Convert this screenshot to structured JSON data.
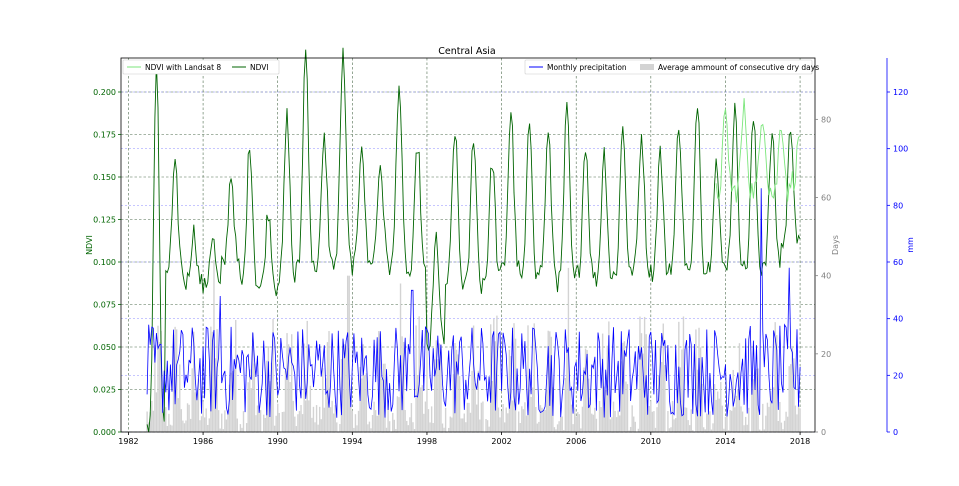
{
  "chart_data": {
    "type": "line",
    "title": "Central Asia",
    "x_axis": {
      "ticks": [
        "1982",
        "1986",
        "1990",
        "1994",
        "1998",
        "2002",
        "2006",
        "2010",
        "2014",
        "2018"
      ],
      "range": [
        1981.6,
        2018.8
      ]
    },
    "y_left": {
      "label": "NDVI",
      "ticks": [
        "0.000",
        "0.025",
        "0.050",
        "0.075",
        "0.100",
        "0.125",
        "0.150",
        "0.175",
        "0.200"
      ],
      "range": [
        0,
        0.22
      ],
      "color": "#006400"
    },
    "y_days": {
      "label": "Days",
      "ticks": [
        "0",
        "20",
        "40",
        "60",
        "80"
      ],
      "range": [
        0,
        95.7
      ],
      "color": "#808080"
    },
    "y_mm": {
      "label": "mm",
      "ticks": [
        "0",
        "20",
        "40",
        "60",
        "80",
        "100",
        "120"
      ],
      "range": [
        0,
        132
      ],
      "color": "#0000ff"
    },
    "grid": true,
    "legend_left": {
      "placement": "upper-left",
      "entries": [
        "NDVI with Landsat 8",
        "NDVI"
      ]
    },
    "legend_right": {
      "placement": "upper-right",
      "entries": [
        "Monthly precipitation",
        "Average ammount of consecutive dry days"
      ]
    },
    "series": [
      {
        "name": "NDVI",
        "color": "#006400",
        "axis": "left",
        "x_start": 1983.0,
        "x_end": 2018.0,
        "yearly_peaks": [
          0.218,
          0.155,
          0.118,
          0.115,
          0.152,
          0.17,
          0.13,
          0.186,
          0.225,
          0.172,
          0.225,
          0.172,
          0.158,
          0.206,
          0.17,
          0.115,
          0.178,
          0.175,
          0.16,
          0.189,
          0.183,
          0.175,
          0.19,
          0.17,
          0.165,
          0.18,
          0.175,
          0.165,
          0.182,
          0.196,
          0.16,
          0.19,
          0.184,
          0.175,
          0.18
        ],
        "yearly_troughs": [
          0.0,
          0.095,
          0.088,
          0.085,
          0.098,
          0.087,
          0.085,
          0.09,
          0.096,
          0.098,
          0.1,
          0.098,
          0.102,
          0.097,
          0.092,
          0.05,
          0.088,
          0.086,
          0.09,
          0.096,
          0.09,
          0.095,
          0.088,
          0.093,
          0.09,
          0.092,
          0.096,
          0.094,
          0.098,
          0.093,
          0.097,
          0.1,
          0.096,
          0.1,
          0.11
        ]
      },
      {
        "name": "NDVI with Landsat 8",
        "color": "#7be67b",
        "axis": "left",
        "x_start": 2013.5,
        "x_end": 2018.0,
        "yearly_peaks": [
          0.185,
          0.19,
          0.188,
          0.182,
          0.175
        ],
        "yearly_troughs": [
          0.14,
          0.142,
          0.143,
          0.14,
          0.148
        ]
      },
      {
        "name": "Monthly precipitation",
        "color": "#0000ff",
        "axis": "mm",
        "x_start": 1983.0,
        "x_end": 2018.0,
        "typical_range": [
          5,
          38
        ],
        "spikes": [
          [
            1986.9,
            48
          ],
          [
            1997.2,
            50
          ],
          [
            2015.9,
            86
          ],
          [
            2017.4,
            58
          ]
        ]
      },
      {
        "name": "Average ammount of consecutive dry days",
        "color": "#d3d3d3",
        "axis": "days",
        "x_start": 1983.0,
        "x_end": 2018.0,
        "typical_range": [
          0,
          30
        ],
        "spikes": [
          [
            1986.6,
            44
          ],
          [
            1993.8,
            40
          ],
          [
            1996.6,
            38
          ],
          [
            1998.0,
            30
          ],
          [
            2005.6,
            42
          ]
        ]
      }
    ]
  }
}
